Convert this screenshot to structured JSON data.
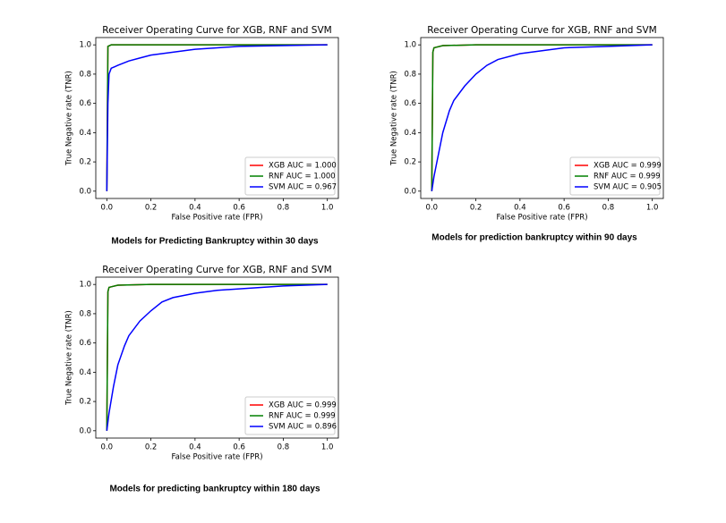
{
  "chart_data": [
    {
      "type": "line",
      "title": "Receiver Operating Curve for XGB, RNF and SVM",
      "xlabel": "False Positive rate (FPR)",
      "ylabel": "True Negative rate (TNR)",
      "caption": "Models for Predicting Bankruptcy within 30 days",
      "xlim": [
        -0.05,
        1.05
      ],
      "ylim": [
        -0.05,
        1.05
      ],
      "xticks": [
        {
          "value": 0,
          "label": "0.0"
        },
        0.2,
        0.4,
        0.6,
        0.8,
        {
          "value": 1,
          "label": "1.0"
        }
      ],
      "yticks": [
        {
          "value": 0,
          "label": "0.0"
        },
        0.2,
        0.4,
        0.6,
        0.8,
        {
          "value": 1,
          "label": "1.0"
        }
      ],
      "legend": "lower right",
      "series": [
        {
          "name": "XGB AUC = 1.000",
          "color": "#ff0000",
          "x": [
            0,
            0.005,
            0.02,
            1
          ],
          "values": [
            0,
            0.99,
            1,
            1
          ]
        },
        {
          "name": "RNF AUC = 1.000",
          "color": "#008000",
          "x": [
            0,
            0.005,
            0.02,
            1
          ],
          "values": [
            0,
            0.99,
            1,
            1
          ]
        },
        {
          "name": "SVM AUC = 0.967",
          "color": "#0000ff",
          "x": [
            0,
            0.005,
            0.01,
            0.02,
            0.05,
            0.1,
            0.15,
            0.2,
            0.3,
            0.4,
            0.5,
            0.6,
            0.8,
            1
          ],
          "values": [
            0,
            0.6,
            0.8,
            0.84,
            0.86,
            0.89,
            0.91,
            0.93,
            0.95,
            0.97,
            0.98,
            0.99,
            0.995,
            1
          ]
        }
      ]
    },
    {
      "type": "line",
      "title": "Receiver Operating Curve for XGB, RNF and SVM",
      "xlabel": "False Positive rate (FPR)",
      "ylabel": "True Negative rate (TNR)",
      "caption": "Models for prediction bankruptcy within 90 days",
      "xlim": [
        -0.05,
        1.05
      ],
      "ylim": [
        -0.05,
        1.05
      ],
      "xticks": [
        {
          "value": 0,
          "label": "0.0"
        },
        0.2,
        0.4,
        0.6,
        0.8,
        {
          "value": 1,
          "label": "1.0"
        }
      ],
      "yticks": [
        {
          "value": 0,
          "label": "0.0"
        },
        0.2,
        0.4,
        0.6,
        0.8,
        {
          "value": 1,
          "label": "1.0"
        }
      ],
      "legend": "lower right",
      "series": [
        {
          "name": "XGB AUC = 0.999",
          "color": "#ff0000",
          "x": [
            0,
            0.005,
            0.01,
            0.05,
            0.2,
            1
          ],
          "values": [
            0,
            0.95,
            0.98,
            0.995,
            1,
            1
          ]
        },
        {
          "name": "RNF AUC = 0.999",
          "color": "#008000",
          "x": [
            0,
            0.005,
            0.01,
            0.05,
            0.2,
            1
          ],
          "values": [
            0,
            0.95,
            0.98,
            0.995,
            1,
            1
          ]
        },
        {
          "name": "SVM AUC = 0.905",
          "color": "#0000ff",
          "x": [
            0,
            0.01,
            0.03,
            0.05,
            0.08,
            0.1,
            0.15,
            0.2,
            0.25,
            0.3,
            0.4,
            0.5,
            0.6,
            0.8,
            1
          ],
          "values": [
            0,
            0.1,
            0.25,
            0.4,
            0.55,
            0.62,
            0.72,
            0.8,
            0.86,
            0.9,
            0.94,
            0.96,
            0.98,
            0.99,
            1
          ]
        }
      ]
    },
    {
      "type": "line",
      "title": "Receiver Operating Curve for XGB, RNF and SVM",
      "xlabel": "False Positive rate (FPR)",
      "ylabel": "True Negative rate (TNR)",
      "caption": "Models for predicting bankruptcy within 180 days",
      "xlim": [
        -0.05,
        1.05
      ],
      "ylim": [
        -0.05,
        1.05
      ],
      "xticks": [
        {
          "value": 0,
          "label": "0.0"
        },
        0.2,
        0.4,
        0.6,
        0.8,
        {
          "value": 1,
          "label": "1.0"
        }
      ],
      "yticks": [
        {
          "value": 0,
          "label": "0.0"
        },
        0.2,
        0.4,
        0.6,
        0.8,
        {
          "value": 1,
          "label": "1.0"
        }
      ],
      "legend": "lower right",
      "series": [
        {
          "name": "XGB AUC = 0.999",
          "color": "#ff0000",
          "x": [
            0,
            0.005,
            0.01,
            0.05,
            0.2,
            1
          ],
          "values": [
            0,
            0.95,
            0.98,
            0.995,
            1,
            1
          ]
        },
        {
          "name": "RNF AUC = 0.999",
          "color": "#008000",
          "x": [
            0,
            0.005,
            0.01,
            0.05,
            0.2,
            1
          ],
          "values": [
            0,
            0.95,
            0.98,
            0.995,
            1,
            1
          ]
        },
        {
          "name": "SVM AUC = 0.896",
          "color": "#0000ff",
          "x": [
            0,
            0.01,
            0.03,
            0.05,
            0.08,
            0.1,
            0.15,
            0.2,
            0.25,
            0.3,
            0.4,
            0.5,
            0.6,
            0.8,
            1
          ],
          "values": [
            0,
            0.12,
            0.3,
            0.45,
            0.58,
            0.65,
            0.75,
            0.82,
            0.88,
            0.91,
            0.94,
            0.96,
            0.97,
            0.99,
            1
          ]
        }
      ]
    }
  ]
}
